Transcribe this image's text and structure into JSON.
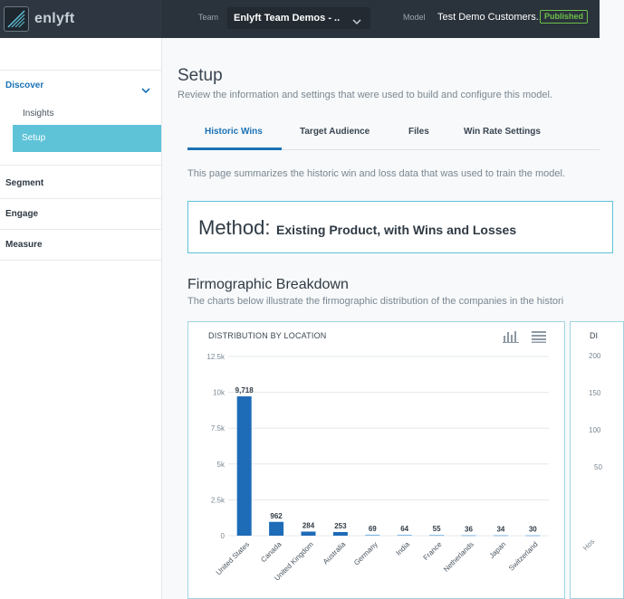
{
  "app": {
    "brand": "enlyft"
  },
  "topbar": {
    "team_label": "Team",
    "team_value": "Enlyft Team Demos - ..",
    "model_label": "Model",
    "model_value": "Test Demo Customers..",
    "status_badge": "Published",
    "status_color": "#6cc04a"
  },
  "sidebar": {
    "discover": "Discover",
    "items": [
      {
        "label": "Insights",
        "active": false
      },
      {
        "label": "Setup",
        "active": true
      }
    ],
    "segment": "Segment",
    "engage": "Engage",
    "measure": "Measure"
  },
  "main": {
    "title": "Setup",
    "subtitle": "Review the information and settings that were used to build and configure this model.",
    "tabs": [
      {
        "label": "Historic Wins",
        "active": true
      },
      {
        "label": "Target Audience",
        "active": false
      },
      {
        "label": "Files",
        "active": false
      },
      {
        "label": "Win Rate Settings",
        "active": false
      }
    ],
    "intro": "This page summarizes the historic win and loss data that was used to train the model.",
    "method_label": "Method:",
    "method_value": "Existing Product, with Wins and Losses",
    "firmo_title": "Firmographic Breakdown",
    "firmo_subtitle": "The charts below illustrate the firmographic distribution of the companies in the histori"
  },
  "chart_data": [
    {
      "type": "bar",
      "title": "DISTRIBUTION BY LOCATION",
      "categories": [
        "United States",
        "Canada",
        "United Kingdom",
        "Australia",
        "Germany",
        "India",
        "France",
        "Netherlands",
        "Japan",
        "Switzerland"
      ],
      "values": [
        9718,
        962,
        284,
        253,
        69,
        64,
        55,
        36,
        34,
        30
      ],
      "value_labels": [
        "9,718",
        "962",
        "284",
        "253",
        "69",
        "64",
        "55",
        "36",
        "34",
        "30"
      ],
      "yticks": [
        "0",
        "2.5k",
        "5k",
        "7.5k",
        "10k",
        "12.5k"
      ],
      "ytick_values": [
        0,
        2500,
        5000,
        7500,
        10000,
        12500
      ],
      "ylim": [
        0,
        12500
      ],
      "grid": true,
      "bar_color": "#1e6bb8",
      "icons": [
        "bar-chart-icon",
        "list-icon"
      ]
    },
    {
      "type": "bar",
      "title": "DI",
      "ytick_labels": [
        "200",
        "150",
        "100",
        "50"
      ],
      "x_label_partial": "Hos"
    }
  ]
}
